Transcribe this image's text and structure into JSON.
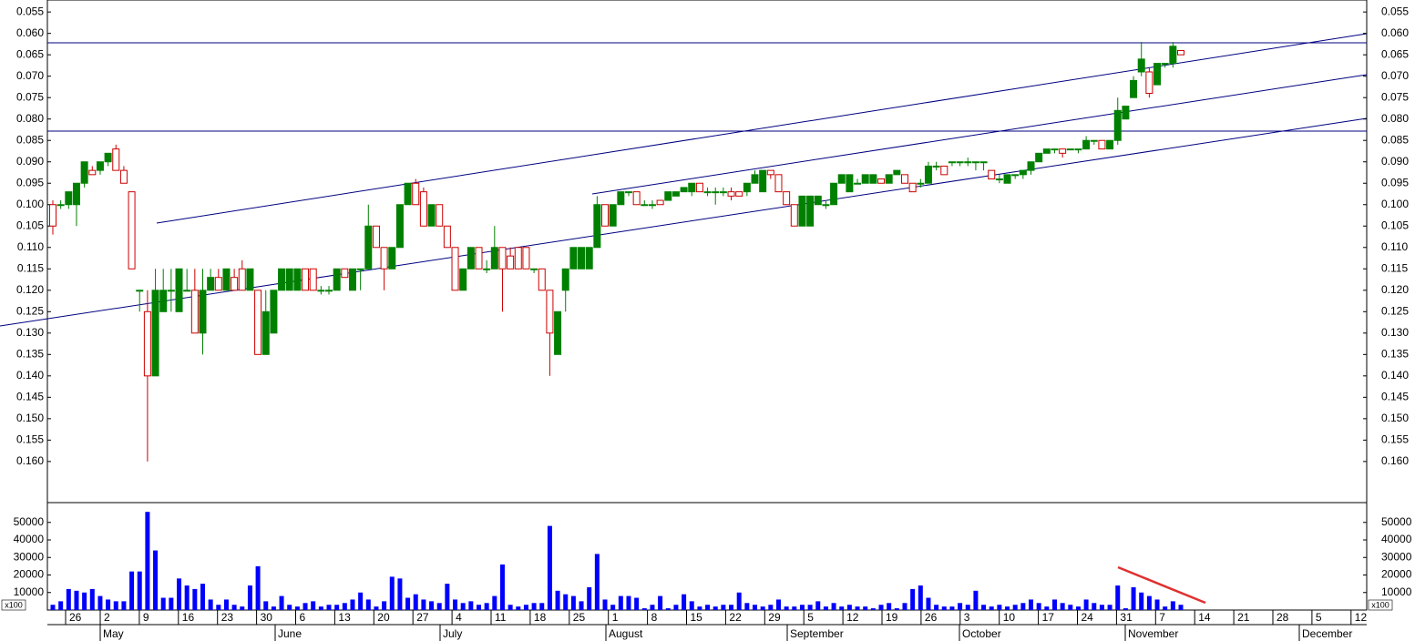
{
  "chart_data": [
    {
      "type": "candlestick",
      "up_color": "#008000",
      "down_color": "#cc0000",
      "open": [
        0.1,
        0.1,
        0.1,
        0.1,
        0.095,
        0.092,
        0.092,
        0.09,
        0.087,
        0.092,
        0.097,
        0.12,
        0.125,
        0.14,
        0.125,
        0.12,
        0.125,
        0.12,
        0.12,
        0.13,
        0.12,
        0.117,
        0.12,
        0.117,
        0.115,
        0.12,
        0.12,
        0.135,
        0.13,
        0.12,
        0.12,
        0.12,
        0.115,
        0.115,
        0.12,
        0.12,
        0.12,
        0.115,
        0.12,
        0.115,
        0.115,
        0.105,
        0.11,
        0.115,
        0.11,
        0.1,
        0.095,
        0.097,
        0.105,
        0.1,
        0.105,
        0.11,
        0.12,
        0.115,
        0.11,
        0.115,
        0.115,
        0.11,
        0.112,
        0.11,
        0.11,
        0.115,
        0.115,
        0.12,
        0.135,
        0.12,
        0.115,
        0.115,
        0.115,
        0.11,
        0.1,
        0.105,
        0.1,
        0.097,
        0.097,
        0.1,
        0.1,
        0.099,
        0.099,
        0.098,
        0.097,
        0.097,
        0.095,
        0.097,
        0.097,
        0.097,
        0.097,
        0.097,
        0.097,
        0.095,
        0.097,
        0.092,
        0.093,
        0.097,
        0.1,
        0.105,
        0.105,
        0.1,
        0.1,
        0.1,
        0.095,
        0.097,
        0.095,
        0.095,
        0.095,
        0.094,
        0.095,
        0.093,
        0.093,
        0.095,
        0.095,
        0.095,
        0.091,
        0.091,
        0.09,
        0.09,
        0.09,
        0.09,
        0.09,
        0.092,
        0.094,
        0.095,
        0.093,
        0.093,
        0.092,
        0.09,
        0.088,
        0.087,
        0.087,
        0.087,
        0.087,
        0.087,
        0.085,
        0.085,
        0.087,
        0.085,
        0.08,
        0.075,
        0.069,
        0.069,
        0.072,
        0.067,
        0.067,
        0.064
      ],
      "close": [
        0.105,
        0.1,
        0.097,
        0.095,
        0.09,
        0.093,
        0.09,
        0.088,
        0.092,
        0.095,
        0.115,
        0.12,
        0.14,
        0.12,
        0.12,
        0.12,
        0.115,
        0.12,
        0.13,
        0.12,
        0.117,
        0.12,
        0.115,
        0.12,
        0.12,
        0.115,
        0.135,
        0.125,
        0.12,
        0.115,
        0.115,
        0.115,
        0.12,
        0.12,
        0.12,
        0.12,
        0.115,
        0.117,
        0.115,
        0.115,
        0.105,
        0.11,
        0.115,
        0.11,
        0.1,
        0.095,
        0.1,
        0.105,
        0.1,
        0.105,
        0.11,
        0.12,
        0.115,
        0.11,
        0.115,
        0.115,
        0.11,
        0.115,
        0.115,
        0.115,
        0.115,
        0.115,
        0.12,
        0.13,
        0.125,
        0.115,
        0.11,
        0.11,
        0.11,
        0.1,
        0.105,
        0.1,
        0.097,
        0.097,
        0.1,
        0.1,
        0.1,
        0.1,
        0.097,
        0.097,
        0.096,
        0.095,
        0.097,
        0.097,
        0.097,
        0.097,
        0.098,
        0.098,
        0.095,
        0.093,
        0.092,
        0.093,
        0.097,
        0.1,
        0.105,
        0.098,
        0.098,
        0.098,
        0.1,
        0.095,
        0.093,
        0.093,
        0.095,
        0.093,
        0.093,
        0.095,
        0.093,
        0.092,
        0.095,
        0.097,
        0.095,
        0.091,
        0.091,
        0.093,
        0.09,
        0.09,
        0.09,
        0.09,
        0.09,
        0.094,
        0.094,
        0.093,
        0.093,
        0.092,
        0.09,
        0.088,
        0.087,
        0.087,
        0.088,
        0.087,
        0.087,
        0.085,
        0.085,
        0.087,
        0.085,
        0.078,
        0.077,
        0.071,
        0.066,
        0.074,
        0.067,
        0.067,
        0.063,
        0.065
      ],
      "low": [
        0.099,
        0.099,
        0.097,
        0.095,
        0.09,
        0.091,
        0.09,
        0.088,
        0.086,
        0.091,
        0.097,
        0.12,
        0.12,
        0.115,
        0.115,
        0.115,
        0.115,
        0.115,
        0.115,
        0.115,
        0.115,
        0.115,
        0.115,
        0.115,
        0.113,
        0.115,
        0.12,
        0.12,
        0.12,
        0.115,
        0.115,
        0.115,
        0.115,
        0.115,
        0.119,
        0.119,
        0.115,
        0.115,
        0.115,
        0.115,
        0.1,
        0.105,
        0.11,
        0.11,
        0.1,
        0.095,
        0.094,
        0.096,
        0.1,
        0.1,
        0.105,
        0.11,
        0.115,
        0.11,
        0.11,
        0.113,
        0.105,
        0.11,
        0.11,
        0.11,
        0.11,
        0.115,
        0.115,
        0.12,
        0.125,
        0.115,
        0.11,
        0.11,
        0.11,
        0.098,
        0.1,
        0.1,
        0.097,
        0.097,
        0.097,
        0.099,
        0.099,
        0.099,
        0.097,
        0.097,
        0.096,
        0.095,
        0.095,
        0.096,
        0.096,
        0.096,
        0.096,
        0.097,
        0.095,
        0.092,
        0.092,
        0.092,
        0.093,
        0.097,
        0.1,
        0.098,
        0.098,
        0.098,
        0.099,
        0.095,
        0.093,
        0.093,
        0.094,
        0.093,
        0.093,
        0.094,
        0.093,
        0.092,
        0.093,
        0.095,
        0.094,
        0.09,
        0.09,
        0.091,
        0.09,
        0.09,
        0.089,
        0.09,
        0.09,
        0.092,
        0.093,
        0.093,
        0.093,
        0.092,
        0.09,
        0.088,
        0.087,
        0.087,
        0.087,
        0.087,
        0.087,
        0.084,
        0.085,
        0.085,
        0.085,
        0.075,
        0.077,
        0.07,
        0.062,
        0.068,
        0.067,
        0.067,
        0.062,
        0.064
      ],
      "high": [
        0.107,
        0.101,
        0.101,
        0.105,
        0.096,
        0.093,
        0.093,
        0.091,
        0.092,
        0.095,
        0.115,
        0.125,
        0.16,
        0.14,
        0.125,
        0.125,
        0.125,
        0.12,
        0.13,
        0.135,
        0.12,
        0.12,
        0.12,
        0.12,
        0.12,
        0.12,
        0.135,
        0.135,
        0.13,
        0.12,
        0.12,
        0.12,
        0.12,
        0.12,
        0.121,
        0.121,
        0.12,
        0.117,
        0.12,
        0.12,
        0.115,
        0.11,
        0.12,
        0.115,
        0.11,
        0.1,
        0.1,
        0.105,
        0.105,
        0.105,
        0.11,
        0.12,
        0.12,
        0.115,
        0.115,
        0.116,
        0.115,
        0.125,
        0.115,
        0.115,
        0.115,
        0.116,
        0.12,
        0.14,
        0.135,
        0.125,
        0.115,
        0.115,
        0.115,
        0.11,
        0.105,
        0.105,
        0.1,
        0.098,
        0.1,
        0.1,
        0.101,
        0.1,
        0.099,
        0.098,
        0.097,
        0.098,
        0.097,
        0.098,
        0.1,
        0.098,
        0.099,
        0.098,
        0.098,
        0.095,
        0.097,
        0.094,
        0.097,
        0.1,
        0.105,
        0.105,
        0.105,
        0.1,
        0.101,
        0.1,
        0.095,
        0.097,
        0.095,
        0.095,
        0.095,
        0.095,
        0.095,
        0.093,
        0.095,
        0.097,
        0.096,
        0.095,
        0.092,
        0.093,
        0.091,
        0.091,
        0.091,
        0.092,
        0.092,
        0.094,
        0.095,
        0.095,
        0.094,
        0.094,
        0.093,
        0.09,
        0.088,
        0.088,
        0.089,
        0.087,
        0.088,
        0.087,
        0.086,
        0.087,
        0.087,
        0.086,
        0.08,
        0.075,
        0.07,
        0.075,
        0.072,
        0.068,
        0.068,
        0.065
      ],
      "ylim": [
        0.1696,
        0.0522
      ],
      "yticks": [
        0.055,
        {
          "value": 0.06,
          "label": "0.060"
        },
        0.065,
        {
          "value": 0.07,
          "label": "0.070"
        },
        0.075,
        {
          "value": 0.08,
          "label": "0.080"
        },
        0.085,
        {
          "value": 0.09,
          "label": "0.090"
        },
        0.095,
        {
          "value": 0.1,
          "label": "0.100"
        },
        0.105,
        {
          "value": 0.11,
          "label": "0.110"
        },
        0.115,
        {
          "value": 0.12,
          "label": "0.120"
        },
        0.125,
        {
          "value": 0.13,
          "label": "0.130"
        },
        0.135,
        {
          "value": 0.14,
          "label": "0.140"
        },
        0.145,
        {
          "value": 0.15,
          "label": "0.150"
        },
        0.155,
        {
          "value": 0.16,
          "label": "0.160"
        }
      ]
    },
    {
      "type": "bar",
      "color": "#0000ff",
      "multiplier": "x100",
      "values": [
        3000,
        5000,
        12000,
        11000,
        10000,
        12000,
        8000,
        6000,
        5000,
        5000,
        22000,
        22000,
        56000,
        34000,
        7000,
        7000,
        18000,
        14000,
        12000,
        15000,
        6000,
        3000,
        6000,
        3000,
        2000,
        14000,
        25000,
        5000,
        2000,
        8000,
        3000,
        2000,
        4000,
        5000,
        2000,
        3000,
        3000,
        4000,
        6000,
        10000,
        6000,
        2000,
        5000,
        19000,
        18000,
        7000,
        9000,
        6000,
        5000,
        4000,
        15000,
        6000,
        4000,
        5000,
        3000,
        4000,
        8000,
        26000,
        3000,
        2000,
        3000,
        4000,
        4000,
        48000,
        11000,
        9000,
        8000,
        5000,
        13000,
        32000,
        6000,
        3000,
        8000,
        8000,
        7000,
        1000,
        3000,
        8000,
        1000,
        3000,
        9000,
        5000,
        2000,
        3000,
        2000,
        3000,
        3000,
        10000,
        4000,
        3000,
        2000,
        3000,
        6000,
        2000,
        2000,
        3000,
        3000,
        5000,
        2000,
        4000,
        2000,
        3000,
        2000,
        2000,
        1000,
        3000,
        4000,
        1000,
        4000,
        12000,
        14000,
        7000,
        3000,
        2000,
        2000,
        4000,
        3000,
        11000,
        3000,
        2000,
        3000,
        2000,
        3000,
        4000,
        6000,
        4000,
        2000,
        6000,
        4000,
        3000,
        2000,
        6000,
        4000,
        3000,
        3000,
        14000,
        1000,
        13000,
        10000,
        8000,
        6000,
        2000,
        5000,
        3000
      ],
      "ylim": [
        0,
        61300
      ],
      "yticks": [
        10000,
        20000,
        30000,
        40000,
        50000
      ]
    }
  ],
  "x_axis": {
    "days": [
      "26",
      "2",
      "9",
      "16",
      "23",
      "30",
      "6",
      "13",
      "20",
      "27",
      "4",
      "11",
      "18",
      "25",
      "1",
      "8",
      "15",
      "22",
      "29",
      "5",
      "12",
      "19",
      "26",
      "3",
      "10",
      "17",
      "24",
      "31",
      "7",
      "14",
      "21",
      "28",
      "5",
      "12"
    ],
    "months": [
      "May",
      "June",
      "July",
      "August",
      "September",
      "October",
      "November",
      "December"
    ]
  }
}
